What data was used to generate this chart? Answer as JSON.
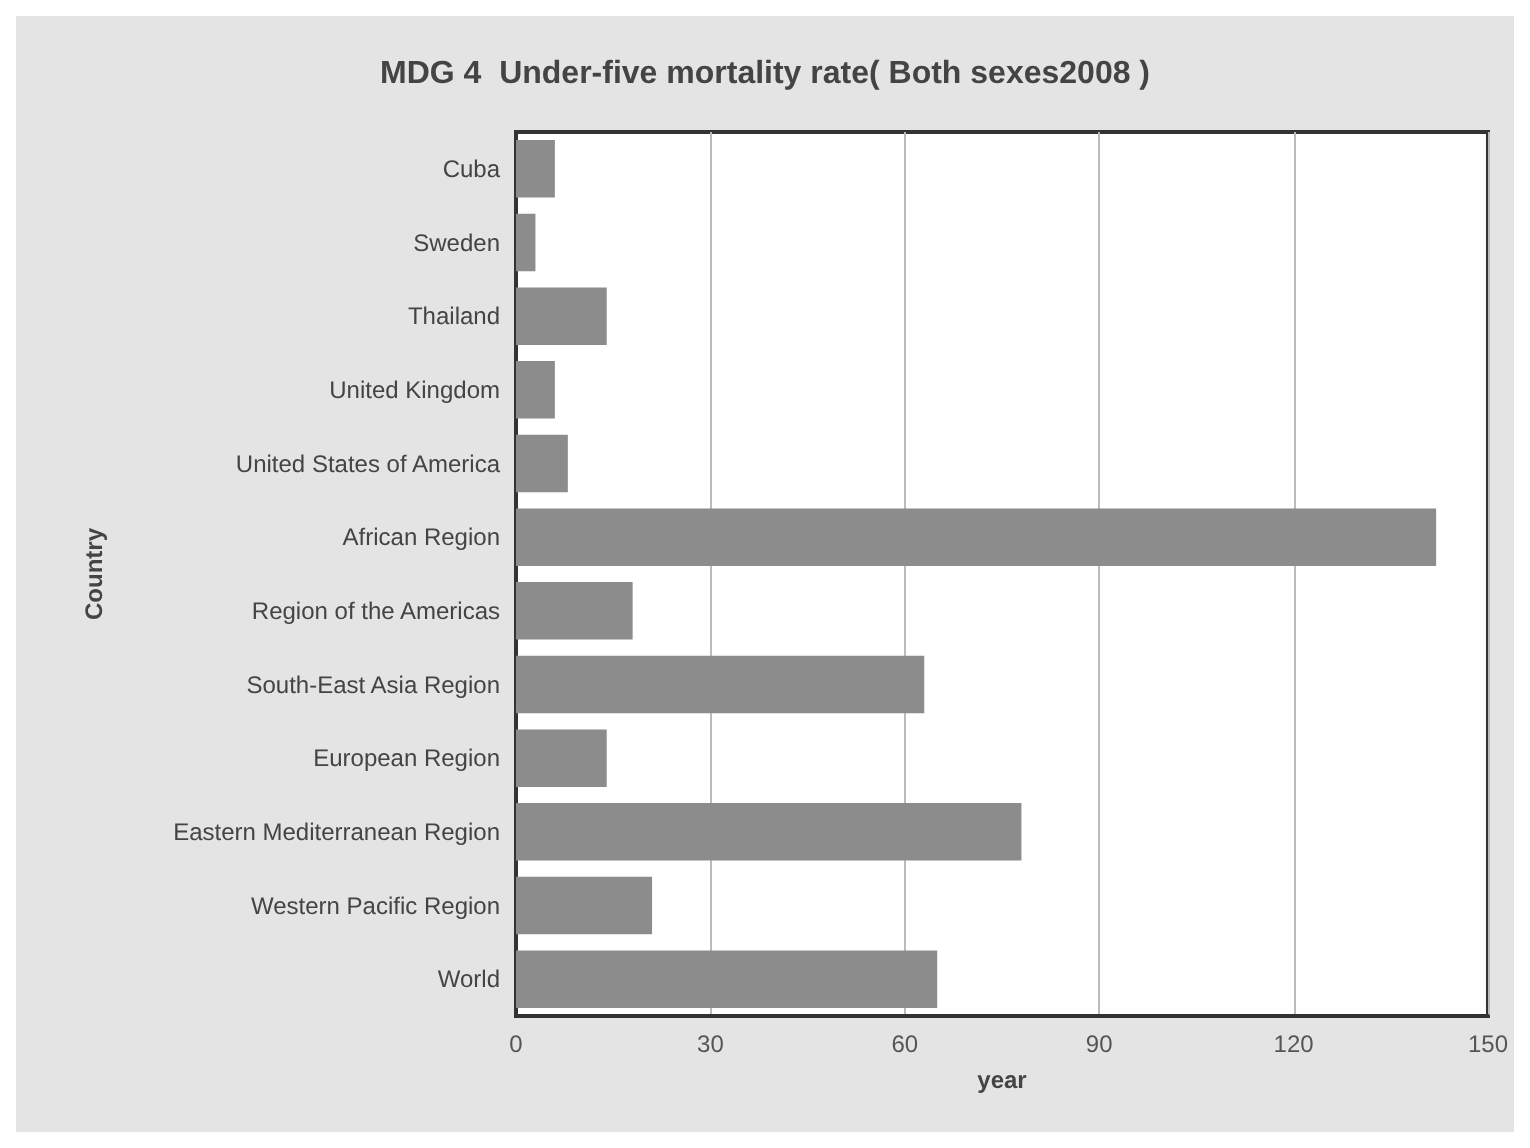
{
  "chart_data": {
    "type": "bar",
    "orientation": "horizontal",
    "title": "MDG 4  Under-five mortality rate( Both sexes2008 )",
    "xlabel": "year",
    "ylabel": "Country",
    "categories": [
      "Cuba",
      "Sweden",
      "Thailand",
      "United Kingdom",
      "United States of America",
      "African Region",
      "Region of the Americas",
      "South-East Asia Region",
      "European Region",
      "Eastern Mediterranean Region",
      "Western Pacific Region",
      "World"
    ],
    "values": [
      6,
      3,
      14,
      6,
      8,
      142,
      18,
      63,
      14,
      78,
      21,
      65
    ],
    "color": "#8c8c8c",
    "xlim": [
      0,
      150
    ],
    "xticks": [
      0,
      30,
      60,
      90,
      120,
      150
    ],
    "grid": "x"
  }
}
